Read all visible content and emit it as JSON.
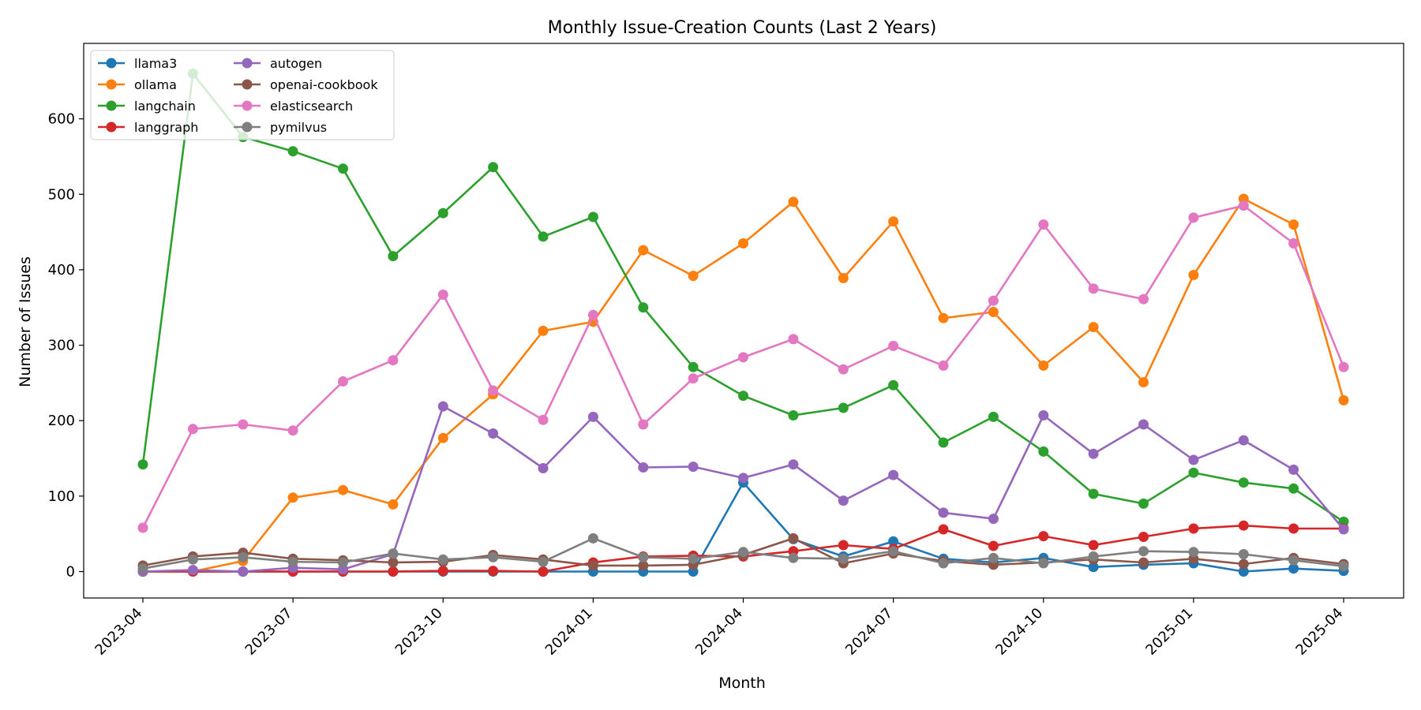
{
  "chart_data": {
    "type": "line",
    "title": "Monthly Issue-Creation Counts (Last 2 Years)",
    "xlabel": "Month",
    "ylabel": "Number of Issues",
    "ylim": [
      -35,
      700
    ],
    "yticks": [
      0,
      100,
      200,
      300,
      400,
      500,
      600
    ],
    "xticks": [
      "2023-04",
      "2023-07",
      "2023-10",
      "2024-01",
      "2024-04",
      "2024-07",
      "2024-10",
      "2025-01",
      "2025-04"
    ],
    "x": [
      "2023-04",
      "2023-05",
      "2023-06",
      "2023-07",
      "2023-08",
      "2023-09",
      "2023-10",
      "2023-11",
      "2023-12",
      "2024-01",
      "2024-02",
      "2024-03",
      "2024-04",
      "2024-05",
      "2024-06",
      "2024-07",
      "2024-08",
      "2024-09",
      "2024-10",
      "2024-11",
      "2024-12",
      "2025-01",
      "2025-02",
      "2025-03",
      "2025-04"
    ],
    "grid": false,
    "legend": "top-left",
    "series": [
      {
        "name": "llama3",
        "color": "#1f77b4",
        "values": [
          0,
          0,
          0,
          0,
          0,
          0,
          0,
          0,
          0,
          0,
          0,
          0,
          118,
          43,
          20,
          40,
          17,
          12,
          18,
          6,
          9,
          11,
          0,
          4,
          1
        ]
      },
      {
        "name": "ollama",
        "color": "#ff7f0e",
        "values": [
          0,
          0,
          14,
          98,
          108,
          89,
          177,
          235,
          319,
          331,
          426,
          392,
          435,
          490,
          389,
          464,
          336,
          344,
          273,
          324,
          251,
          393,
          494,
          460,
          227
        ]
      },
      {
        "name": "langchain",
        "color": "#2ca02c",
        "values": [
          142,
          660,
          576,
          557,
          534,
          418,
          475,
          536,
          444,
          470,
          350,
          271,
          233,
          207,
          217,
          247,
          171,
          205,
          159,
          103,
          90,
          131,
          118,
          110,
          66
        ]
      },
      {
        "name": "langgraph",
        "color": "#d62728",
        "values": [
          0,
          0,
          0,
          0,
          0,
          0,
          1,
          1,
          0,
          12,
          20,
          21,
          20,
          27,
          35,
          30,
          56,
          34,
          47,
          35,
          46,
          57,
          61,
          57,
          57
        ]
      },
      {
        "name": "autogen",
        "color": "#9467bd",
        "values": [
          0,
          2,
          0,
          5,
          3,
          23,
          219,
          183,
          137,
          205,
          138,
          139,
          124,
          142,
          94,
          128,
          78,
          70,
          207,
          156,
          195,
          148,
          174,
          135,
          56
        ]
      },
      {
        "name": "openai-cookbook",
        "color": "#8c564b",
        "values": [
          8,
          20,
          25,
          17,
          15,
          12,
          13,
          22,
          16,
          8,
          8,
          9,
          22,
          44,
          11,
          24,
          14,
          9,
          12,
          16,
          12,
          17,
          10,
          18,
          10
        ]
      },
      {
        "name": "elasticsearch",
        "color": "#e377c2",
        "values": [
          58,
          189,
          195,
          187,
          252,
          280,
          367,
          240,
          201,
          340,
          195,
          256,
          284,
          308,
          268,
          299,
          273,
          359,
          460,
          375,
          361,
          469,
          485,
          435,
          271
        ]
      },
      {
        "name": "pymilvus",
        "color": "#7f7f7f",
        "values": [
          4,
          16,
          19,
          13,
          12,
          24,
          16,
          19,
          13,
          44,
          19,
          17,
          26,
          18,
          17,
          27,
          11,
          18,
          11,
          20,
          27,
          26,
          23,
          15,
          7
        ]
      }
    ]
  }
}
